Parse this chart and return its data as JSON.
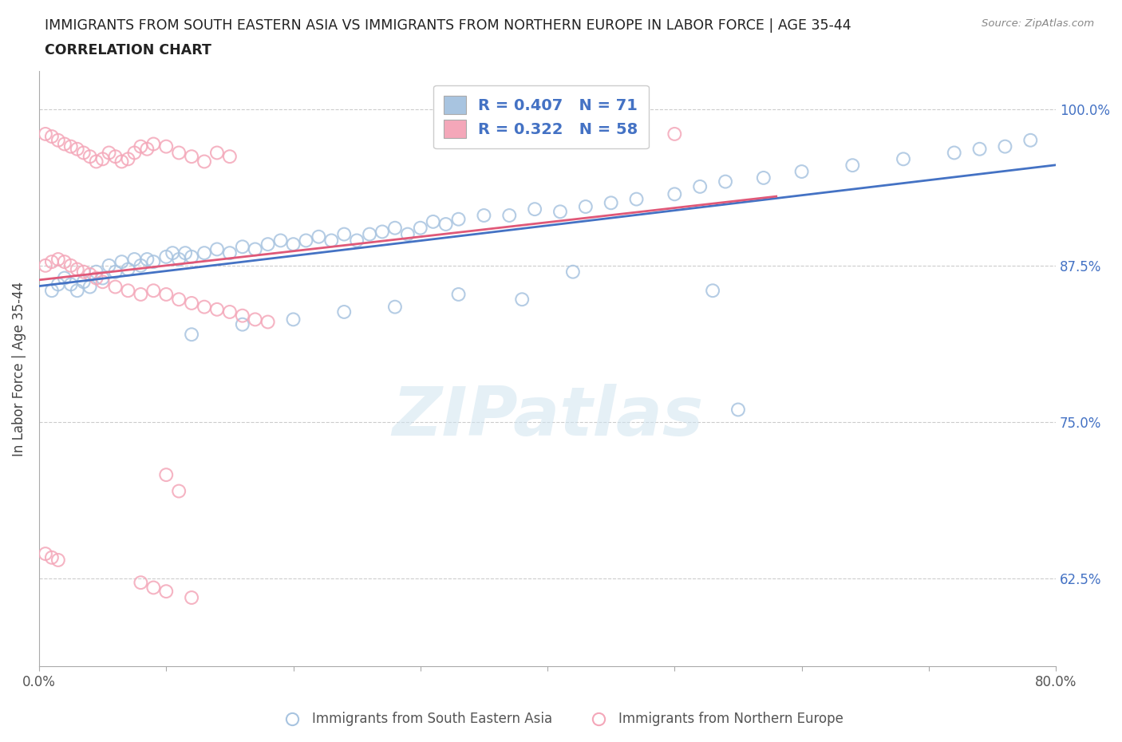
{
  "title_line1": "IMMIGRANTS FROM SOUTH EASTERN ASIA VS IMMIGRANTS FROM NORTHERN EUROPE IN LABOR FORCE | AGE 35-44",
  "title_line2": "CORRELATION CHART",
  "source_text": "Source: ZipAtlas.com",
  "ylabel": "In Labor Force | Age 35-44",
  "xlim": [
    0.0,
    0.8
  ],
  "ylim": [
    0.555,
    1.03
  ],
  "ytick_positions": [
    0.625,
    0.75,
    0.875,
    1.0
  ],
  "ytick_labels": [
    "62.5%",
    "75.0%",
    "87.5%",
    "100.0%"
  ],
  "blue_R": 0.407,
  "blue_N": 71,
  "pink_R": 0.322,
  "pink_N": 58,
  "blue_color": "#a8c4e0",
  "pink_color": "#f4a7b9",
  "blue_line_color": "#4472c4",
  "pink_line_color": "#e05878",
  "legend_text_color": "#4472c4",
  "watermark": "ZIPatlas",
  "blue_x": [
    0.01,
    0.015,
    0.02,
    0.025,
    0.03,
    0.035,
    0.04,
    0.045,
    0.05,
    0.055,
    0.06,
    0.065,
    0.07,
    0.075,
    0.08,
    0.085,
    0.09,
    0.1,
    0.105,
    0.11,
    0.115,
    0.12,
    0.13,
    0.14,
    0.15,
    0.16,
    0.17,
    0.18,
    0.19,
    0.2,
    0.21,
    0.22,
    0.23,
    0.24,
    0.25,
    0.26,
    0.27,
    0.28,
    0.29,
    0.3,
    0.31,
    0.32,
    0.33,
    0.35,
    0.37,
    0.39,
    0.41,
    0.43,
    0.45,
    0.47,
    0.5,
    0.52,
    0.54,
    0.57,
    0.6,
    0.64,
    0.68,
    0.72,
    0.74,
    0.76,
    0.78,
    0.53,
    0.55,
    0.42,
    0.38,
    0.33,
    0.28,
    0.24,
    0.2,
    0.16,
    0.12
  ],
  "blue_y": [
    0.855,
    0.86,
    0.865,
    0.86,
    0.855,
    0.862,
    0.858,
    0.87,
    0.865,
    0.875,
    0.87,
    0.878,
    0.872,
    0.88,
    0.875,
    0.88,
    0.878,
    0.882,
    0.885,
    0.88,
    0.885,
    0.882,
    0.885,
    0.888,
    0.885,
    0.89,
    0.888,
    0.892,
    0.895,
    0.892,
    0.895,
    0.898,
    0.895,
    0.9,
    0.895,
    0.9,
    0.902,
    0.905,
    0.9,
    0.905,
    0.91,
    0.908,
    0.912,
    0.915,
    0.915,
    0.92,
    0.918,
    0.922,
    0.925,
    0.928,
    0.932,
    0.938,
    0.942,
    0.945,
    0.95,
    0.955,
    0.96,
    0.965,
    0.968,
    0.97,
    0.975,
    0.855,
    0.76,
    0.87,
    0.848,
    0.852,
    0.842,
    0.838,
    0.832,
    0.828,
    0.82
  ],
  "pink_x": [
    0.005,
    0.01,
    0.015,
    0.02,
    0.025,
    0.03,
    0.035,
    0.04,
    0.045,
    0.05,
    0.055,
    0.06,
    0.065,
    0.07,
    0.075,
    0.08,
    0.085,
    0.09,
    0.1,
    0.11,
    0.12,
    0.13,
    0.14,
    0.15,
    0.005,
    0.01,
    0.015,
    0.02,
    0.025,
    0.03,
    0.035,
    0.04,
    0.045,
    0.05,
    0.06,
    0.07,
    0.08,
    0.09,
    0.1,
    0.11,
    0.12,
    0.13,
    0.14,
    0.15,
    0.16,
    0.17,
    0.18,
    0.1,
    0.11,
    0.005,
    0.01,
    0.015,
    0.08,
    0.09,
    0.1,
    0.12,
    0.5,
    0.35
  ],
  "pink_y": [
    0.98,
    0.978,
    0.975,
    0.972,
    0.97,
    0.968,
    0.965,
    0.962,
    0.958,
    0.96,
    0.965,
    0.962,
    0.958,
    0.96,
    0.965,
    0.97,
    0.968,
    0.972,
    0.97,
    0.965,
    0.962,
    0.958,
    0.965,
    0.962,
    0.875,
    0.878,
    0.88,
    0.878,
    0.875,
    0.872,
    0.87,
    0.868,
    0.865,
    0.862,
    0.858,
    0.855,
    0.852,
    0.855,
    0.852,
    0.848,
    0.845,
    0.842,
    0.84,
    0.838,
    0.835,
    0.832,
    0.83,
    0.708,
    0.695,
    0.645,
    0.642,
    0.64,
    0.622,
    0.618,
    0.615,
    0.61,
    0.98,
    0.98
  ]
}
